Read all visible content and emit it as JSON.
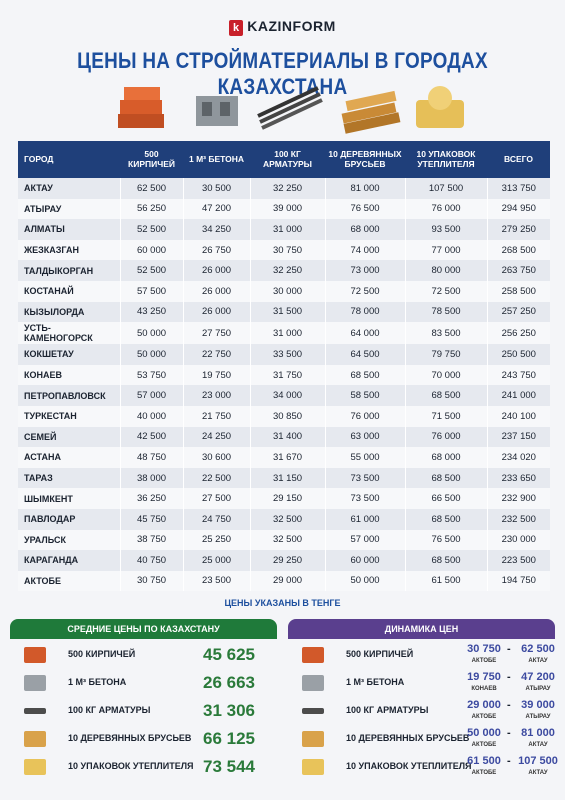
{
  "logo": "KAZINFORM",
  "title": "ЦЕНЫ НА СТРОЙМАТЕРИАЛЫ В ГОРОДАХ КАЗАХСТАНА",
  "table": {
    "headers": [
      "ГОРОД",
      "500 КИРПИЧЕЙ",
      "1 М³ БЕТОНА",
      "100 КГ АРМАТУРЫ",
      "10 ДЕРЕВЯННЫХ БРУСЬЕВ",
      "10 УПАКОВОК УТЕПЛИТЕЛЯ",
      "ВСЕГО"
    ],
    "rows": [
      [
        "АКТАУ",
        "62 500",
        "30 500",
        "32 250",
        "81 000",
        "107 500",
        "313 750"
      ],
      [
        "АТЫРАУ",
        "56 250",
        "47 200",
        "39 000",
        "76 500",
        "76 000",
        "294 950"
      ],
      [
        "АЛМАТЫ",
        "52 500",
        "34 250",
        "31 000",
        "68 000",
        "93 500",
        "279 250"
      ],
      [
        "ЖЕЗКАЗГАН",
        "60 000",
        "26 750",
        "30 750",
        "74 000",
        "77 000",
        "268 500"
      ],
      [
        "ТАЛДЫКОРГАН",
        "52 500",
        "26 000",
        "32 250",
        "73 000",
        "80 000",
        "263 750"
      ],
      [
        "КОСТАНАЙ",
        "57 500",
        "26 000",
        "30 000",
        "72 500",
        "72 500",
        "258 500"
      ],
      [
        "КЫЗЫЛОРДА",
        "43 250",
        "26 000",
        "31 500",
        "78 000",
        "78 500",
        "257 250"
      ],
      [
        "УСТЬ-КАМЕНОГОРСК",
        "50 000",
        "27 750",
        "31 000",
        "64 000",
        "83 500",
        "256 250"
      ],
      [
        "КОКШЕТАУ",
        "50 000",
        "22 750",
        "33 500",
        "64 500",
        "79 750",
        "250 500"
      ],
      [
        "КОНАЕВ",
        "53 750",
        "19 750",
        "31 750",
        "68 500",
        "70 000",
        "243 750"
      ],
      [
        "ПЕТРОПАВЛОВСК",
        "57 000",
        "23 000",
        "34 000",
        "58 500",
        "68 500",
        "241 000"
      ],
      [
        "ТУРКЕСТАН",
        "40 000",
        "21 750",
        "30 850",
        "76 000",
        "71 500",
        "240 100"
      ],
      [
        "СЕМЕЙ",
        "42 500",
        "24 250",
        "31 400",
        "63 000",
        "76 000",
        "237 150"
      ],
      [
        "АСТАНА",
        "48 750",
        "30 600",
        "31 670",
        "55 000",
        "68 000",
        "234 020"
      ],
      [
        "ТАРАЗ",
        "38 000",
        "22 500",
        "31 150",
        "73 500",
        "68 500",
        "233 650"
      ],
      [
        "ШЫМКЕНТ",
        "36 250",
        "27 500",
        "29 150",
        "73 500",
        "66 500",
        "232 900"
      ],
      [
        "ПАВЛОДАР",
        "45 750",
        "24 750",
        "32 500",
        "61 000",
        "68 500",
        "232 500"
      ],
      [
        "УРАЛЬСК",
        "38 750",
        "25 250",
        "32 500",
        "57 000",
        "76 500",
        "230 000"
      ],
      [
        "КАРАГАНДА",
        "40 750",
        "25 000",
        "29 250",
        "60 000",
        "68 500",
        "223 500"
      ],
      [
        "АКТОБЕ",
        "30 750",
        "23 500",
        "29 000",
        "50 000",
        "61 500",
        "194 750"
      ]
    ]
  },
  "note": "ЦЕНЫ УКАЗАНЫ В ТЕНГЕ",
  "averages": {
    "title": "СРЕДНИЕ ЦЕНЫ ПО КАЗАХСТАНУ",
    "items": [
      {
        "label": "500 КИРПИЧЕЙ",
        "value": "45 625"
      },
      {
        "label": "1 М³ БЕТОНА",
        "value": "26 663"
      },
      {
        "label": "100 КГ АРМАТУРЫ",
        "value": "31 306"
      },
      {
        "label": "10 ДЕРЕВЯННЫХ БРУСЬЕВ",
        "value": "66 125"
      },
      {
        "label": "10 УПАКОВОК УТЕПЛИТЕЛЯ",
        "value": "73 544"
      }
    ]
  },
  "dynamics": {
    "title": "ДИНАМИКА ЦЕН",
    "items": [
      {
        "label": "500 КИРПИЧЕЙ",
        "min": "30 750",
        "min_city": "АКТОБЕ",
        "max": "62 500",
        "max_city": "АКТАУ"
      },
      {
        "label": "1 М³ БЕТОНА",
        "min": "19 750",
        "min_city": "КОНАЕВ",
        "max": "47 200",
        "max_city": "АТЫРАУ"
      },
      {
        "label": "100 КГ АРМАТУРЫ",
        "min": "29 000",
        "min_city": "АКТОБЕ",
        "max": "39 000",
        "max_city": "АТЫРАУ"
      },
      {
        "label": "10 ДЕРЕВЯННЫХ БРУСЬЕВ",
        "min": "50 000",
        "min_city": "АКТОБЕ",
        "max": "81 000",
        "max_city": "АКТАУ"
      },
      {
        "label": "10 УПАКОВОК УТЕПЛИТЕЛЯ",
        "min": "61 500",
        "min_city": "АКТОБЕ",
        "max": "107 500",
        "max_city": "АКТАУ"
      }
    ]
  }
}
